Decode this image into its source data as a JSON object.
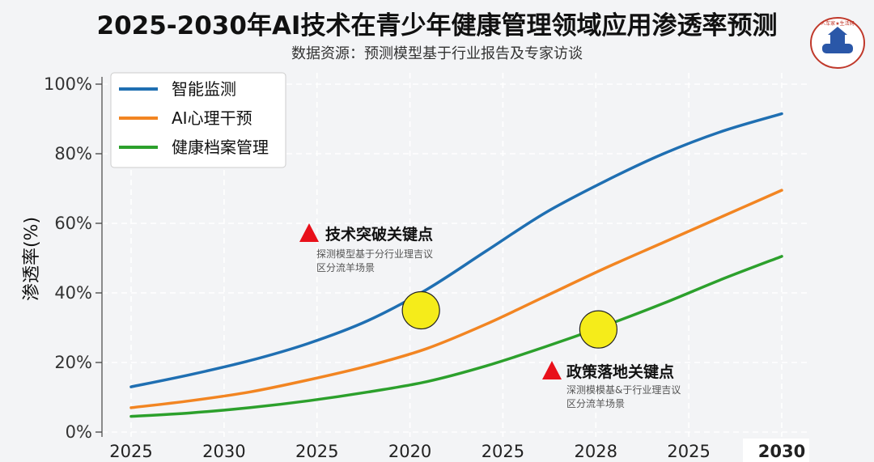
{
  "title": "2025-2030年AI技术在青少年健康管理领域应用渗透率预测",
  "subtitle": "数据资源：预测模型基于行业报告及专家访谈",
  "logo": {
    "text": "人车家★生活网"
  },
  "colors": {
    "background": "#f3f4f6",
    "series1": "#1f6fb2",
    "series2": "#f28522",
    "series3": "#2ca02c",
    "marker": "#f5ec1a",
    "annotation": "#e8101a"
  },
  "chart_data": {
    "type": "line",
    "title": "2025-2030年AI技术在青少年健康管理领域应用渗透率预测",
    "ylabel": "渗透率(%)",
    "xlabel": "",
    "ylim": [
      0,
      100
    ],
    "y_ticks": [
      "0%",
      "20%",
      "40%",
      "60%",
      "80%",
      "100%"
    ],
    "x_tick_labels": [
      "2025",
      "2030",
      "2025",
      "2020",
      "2025",
      "2028",
      "2025",
      "2030"
    ],
    "grid": true,
    "legend": "top-left",
    "series": [
      {
        "name": "智能监测",
        "color": "#1f6fb2",
        "values": [
          13,
          16.5,
          20.5,
          25.5,
          32,
          41,
          52,
          63,
          72,
          80,
          86.5,
          91.5
        ]
      },
      {
        "name": "AI心理干预",
        "color": "#f28522",
        "values": [
          7,
          9,
          11.5,
          15,
          19,
          24,
          31,
          39,
          47,
          54.5,
          62,
          69.5
        ]
      },
      {
        "name": "健康档案管理",
        "color": "#2ca02c",
        "values": [
          4.5,
          5.5,
          7,
          9,
          11.5,
          14.5,
          19,
          24.5,
          30.5,
          37,
          44,
          50.5
        ]
      }
    ],
    "markers": [
      {
        "x_index": 4.9,
        "y": 35
      },
      {
        "x_index": 7.9,
        "y": 29.5
      }
    ],
    "annotations": [
      {
        "title": "技术突破关键点",
        "line1": "探测模型基于分行业理吉议",
        "line2": "区分流羊场景"
      },
      {
        "title": "政策落地关键点",
        "line1": "深测模模基&于行业理吉议",
        "line2": "区分流羊场景"
      }
    ]
  }
}
